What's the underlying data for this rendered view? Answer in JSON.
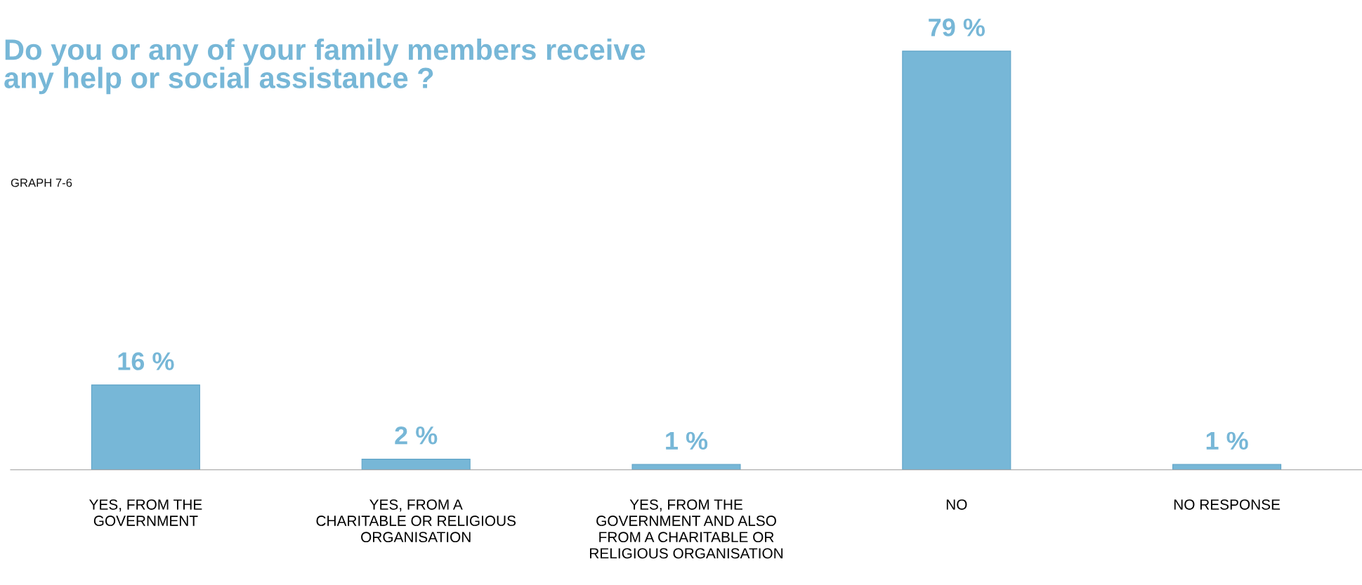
{
  "chart_data": {
    "type": "bar",
    "title": "Do you or any of your family members receive\nany help or social assistance ?",
    "subtitle": "GRAPH 7-6",
    "categories": [
      "YES, FROM THE\nGOVERNMENT",
      "YES, FROM A\nCHARITABLE OR RELIGIOUS\nORGANISATION",
      "YES, FROM THE\nGOVERNMENT AND ALSO\nFROM A CHARITABLE OR\nRELIGIOUS ORGANISATION",
      "NO",
      "NO RESPONSE"
    ],
    "values": [
      16,
      2,
      1,
      79,
      1
    ],
    "value_labels": [
      "16 %",
      "2 %",
      "1 %",
      "79 %",
      "1 %"
    ],
    "color": "#77b7d7",
    "grid": false,
    "legend": false
  }
}
